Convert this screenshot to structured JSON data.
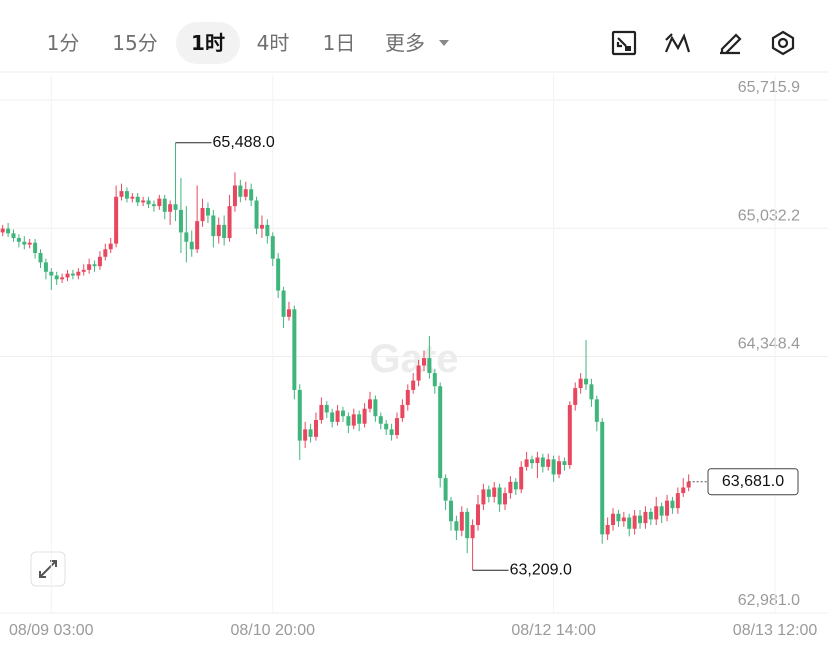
{
  "toolbar": {
    "tabs": [
      "1分",
      "15分",
      "1时",
      "4时",
      "1日",
      "更多"
    ],
    "active": 2
  },
  "chart_data": {
    "type": "candlestick",
    "watermark": "Gate",
    "up_color": "#e8485f",
    "down_color": "#3fb57c",
    "open": [
      65010,
      65030,
      65005,
      64980,
      64960,
      64945,
      64955,
      64900,
      64850,
      64800,
      64780,
      64760,
      64770,
      64790,
      64780,
      64800,
      64810,
      64840,
      64830,
      64880,
      64920,
      64950,
      65200,
      65230,
      65190,
      65200,
      65170,
      65180,
      65160,
      65150,
      65190,
      65120,
      65160,
      65130,
      65010,
      64960,
      64920,
      65070,
      65140,
      65100,
      64990,
      65050,
      64980,
      65150,
      65260,
      65200,
      65240,
      65180,
      65030,
      65050,
      64990,
      64870,
      64700,
      64560,
      64600,
      64170,
      63900,
      63960,
      63920,
      64010,
      64090,
      64050,
      64000,
      64060,
      64030,
      63980,
      64040,
      63990,
      64070,
      64120,
      64030,
      63990,
      63960,
      63930,
      64020,
      64090,
      64170,
      64220,
      64300,
      64340,
      64260,
      64190,
      63700,
      63580,
      63470,
      63420,
      63520,
      63380,
      63450,
      63560,
      63640,
      63600,
      63650,
      63560,
      63620,
      63680,
      63640,
      63760,
      63800,
      63780,
      63810,
      63760,
      63800,
      63720,
      63790,
      63770,
      64090,
      64180,
      64230,
      64200,
      64120,
      64000,
      63400,
      63450,
      63510,
      63470,
      63490,
      63430,
      63500,
      63460,
      63520,
      63480,
      63550,
      63500,
      63580,
      63540,
      63620,
      63650
    ],
    "high": [
      65050,
      65060,
      65025,
      65000,
      64990,
      64975,
      64975,
      64920,
      64870,
      64820,
      64800,
      64790,
      64810,
      64810,
      64820,
      64840,
      64870,
      64860,
      64910,
      64950,
      64980,
      65260,
      65270,
      65250,
      65220,
      65220,
      65200,
      65200,
      65180,
      65210,
      65210,
      65180,
      65488,
      65300,
      65150,
      65020,
      65260,
      65190,
      65170,
      65130,
      65090,
      65100,
      65210,
      65330,
      65290,
      65280,
      65270,
      65200,
      65100,
      65080,
      65010,
      64900,
      64720,
      64640,
      64620,
      64200,
      64000,
      63990,
      64050,
      64130,
      64110,
      64070,
      64090,
      64080,
      64050,
      64070,
      64060,
      64100,
      64160,
      64140,
      64050,
      64010,
      63990,
      64050,
      64120,
      64200,
      64260,
      64330,
      64380,
      64458,
      64280,
      64210,
      63720,
      63600,
      63500,
      63550,
      63540,
      63480,
      63610,
      63670,
      63660,
      63680,
      63670,
      63650,
      63710,
      63700,
      63790,
      63840,
      63820,
      63840,
      63830,
      63830,
      63820,
      63820,
      63810,
      64110,
      64210,
      64260,
      64436,
      64230,
      64140,
      64020,
      63490,
      63540,
      63530,
      63520,
      63510,
      63530,
      63530,
      63550,
      63540,
      63600,
      63570,
      63610,
      63600,
      63650,
      63700,
      63720
    ],
    "low": [
      64990,
      64985,
      64960,
      64930,
      64920,
      64925,
      64870,
      64820,
      64760,
      64703,
      64730,
      64740,
      64750,
      64760,
      64760,
      64780,
      64790,
      64800,
      64810,
      64860,
      64900,
      64930,
      65180,
      65170,
      65170,
      65150,
      65150,
      65140,
      65120,
      65130,
      65080,
      65050,
      65070,
      64900,
      64850,
      64880,
      64900,
      65040,
      65060,
      64930,
      64950,
      64940,
      64960,
      65120,
      65170,
      65180,
      65150,
      65000,
      64980,
      64950,
      64830,
      64660,
      64500,
      64540,
      64120,
      63797,
      63860,
      63890,
      63900,
      63990,
      64020,
      63970,
      63980,
      64000,
      63940,
      63960,
      63950,
      63970,
      64050,
      64000,
      63960,
      63930,
      63900,
      63910,
      64000,
      64060,
      64150,
      64190,
      64270,
      64230,
      64150,
      63650,
      63530,
      63420,
      63370,
      63390,
      63300,
      63209,
      63420,
      63530,
      63570,
      63570,
      63520,
      63530,
      63590,
      63610,
      63620,
      63740,
      63750,
      63700,
      63730,
      63740,
      63680,
      63700,
      63740,
      63750,
      64060,
      64150,
      64170,
      64080,
      63950,
      63350,
      63370,
      63420,
      63440,
      63440,
      63390,
      63400,
      63430,
      63430,
      63450,
      63450,
      63460,
      63470,
      63510,
      63510,
      63600,
      63630
    ],
    "close": [
      65030,
      65005,
      64980,
      64960,
      64945,
      64955,
      64900,
      64850,
      64800,
      64780,
      64760,
      64770,
      64790,
      64780,
      64800,
      64810,
      64840,
      64830,
      64880,
      64920,
      64950,
      65200,
      65230,
      65190,
      65200,
      65170,
      65180,
      65160,
      65150,
      65190,
      65120,
      65160,
      65130,
      65010,
      64960,
      64920,
      65070,
      65140,
      65100,
      64990,
      65050,
      64980,
      65150,
      65260,
      65200,
      65240,
      65180,
      65030,
      65050,
      64990,
      64870,
      64700,
      64560,
      64600,
      64170,
      63900,
      63960,
      63920,
      64010,
      64090,
      64050,
      64000,
      64060,
      64030,
      63980,
      64040,
      63990,
      64070,
      64120,
      64030,
      63990,
      63960,
      63930,
      64020,
      64090,
      64170,
      64220,
      64300,
      64340,
      64260,
      64190,
      63700,
      63580,
      63470,
      63420,
      63520,
      63380,
      63450,
      63560,
      63640,
      63600,
      63650,
      63560,
      63620,
      63680,
      63640,
      63760,
      63800,
      63780,
      63810,
      63760,
      63800,
      63720,
      63790,
      63770,
      64090,
      64180,
      64230,
      64200,
      64120,
      64000,
      63400,
      63450,
      63510,
      63470,
      63490,
      63430,
      63500,
      63460,
      63520,
      63480,
      63550,
      63500,
      63580,
      63540,
      63620,
      63650,
      63681
    ],
    "ylim": [
      62981.0,
      65849
    ],
    "yticks": [
      {
        "value": 65715.9,
        "label": "65,715.9"
      },
      {
        "value": 65032.2,
        "label": "65,032.2"
      },
      {
        "value": 64348.4,
        "label": "64,348.4"
      },
      {
        "value": 62981.0,
        "label": "62,981.0"
      }
    ],
    "xlim": [
      -0.5,
      152.8
    ],
    "xticks": [
      {
        "value": 9,
        "label": "08/09 03:00"
      },
      {
        "value": 50,
        "label": "08/10 20:00"
      },
      {
        "value": 102,
        "label": "08/12 14:00"
      },
      {
        "value": 143,
        "label": "08/13 12:00"
      }
    ],
    "max_label": {
      "value": 65488,
      "label": "65,488.0"
    },
    "min_label": {
      "value": 63209,
      "label": "63,209.0"
    },
    "last_price": {
      "value": 63681,
      "label": "63,681.0"
    },
    "grid": true
  }
}
